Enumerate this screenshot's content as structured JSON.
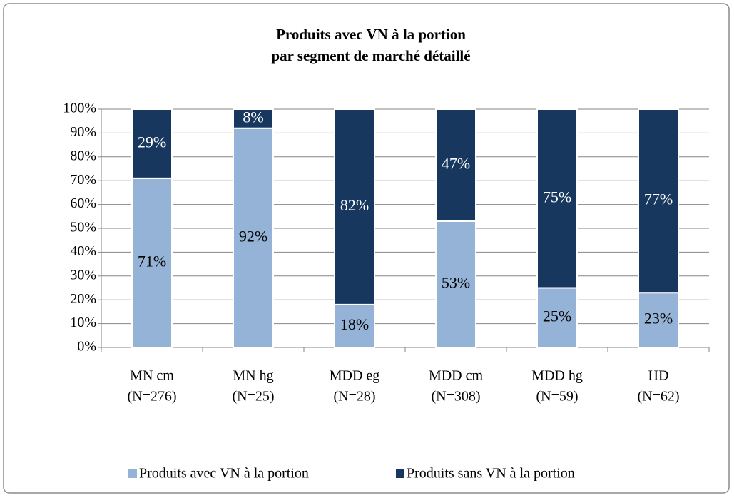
{
  "chart_data": {
    "type": "stacked_bar",
    "title": "Produits avec VN à la portion",
    "subtitle": "par segment de marché détaillé",
    "categories": [
      [
        "MN cm",
        "(N=276)"
      ],
      [
        "MN hg",
        "(N=25)"
      ],
      [
        "MDD eg",
        "(N=28)"
      ],
      [
        "MDD cm",
        "(N=308)"
      ],
      [
        "MDD hg",
        "(N=59)"
      ],
      [
        "HD",
        "(N=62)"
      ]
    ],
    "series": [
      {
        "name": "Produits avec VN à la portion",
        "color": "#95b3d7",
        "label_color": "#000000",
        "values": [
          71,
          92,
          18,
          53,
          25,
          23
        ],
        "value_labels": [
          "71%",
          "92%",
          "18%",
          "53%",
          "25%",
          "23%"
        ]
      },
      {
        "name": "Produits sans VN à la portion",
        "color": "#17375e",
        "label_color": "#ffffff",
        "values": [
          29,
          8,
          82,
          47,
          75,
          77
        ],
        "value_labels": [
          "29%",
          "8%",
          "82%",
          "47%",
          "75%",
          "77%"
        ]
      }
    ],
    "ylim": [
      0,
      100
    ],
    "yticks": [
      {
        "value": 0,
        "label": "0%"
      },
      {
        "value": 10,
        "label": "10%"
      },
      {
        "value": 20,
        "label": "20%"
      },
      {
        "value": 30,
        "label": "30%"
      },
      {
        "value": 40,
        "label": "40%"
      },
      {
        "value": 50,
        "label": "50%"
      },
      {
        "value": 60,
        "label": "60%"
      },
      {
        "value": 70,
        "label": "70%"
      },
      {
        "value": 80,
        "label": "80%"
      },
      {
        "value": 90,
        "label": "90%"
      },
      {
        "value": 100,
        "label": "100%"
      }
    ],
    "grid": true,
    "legend": "bottom"
  }
}
